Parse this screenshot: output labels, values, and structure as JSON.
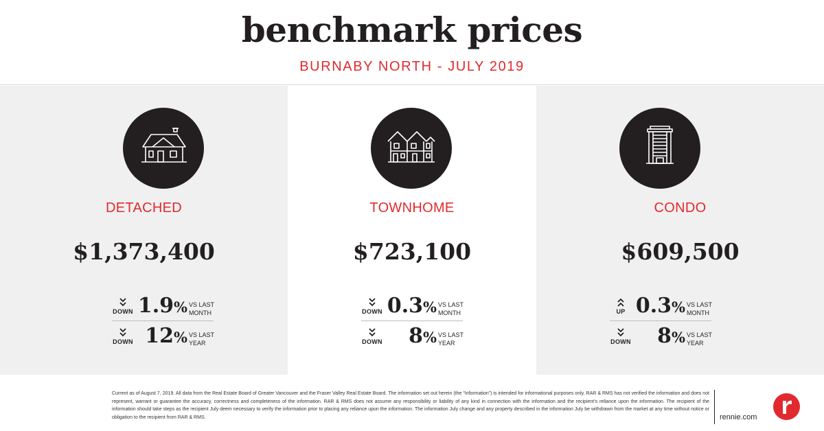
{
  "header": {
    "title": "benchmark prices",
    "subtitle": "BURNABY NORTH - JULY 2019"
  },
  "accent_color": "#e02a2e",
  "panels": [
    {
      "icon": "detached-house-icon",
      "type": "DETACHED",
      "price": "$1,373,400",
      "monthly": {
        "direction": "DOWN",
        "value": "1.9",
        "unit": "%",
        "vs_line1": "VS LAST",
        "vs_line2": "MONTH"
      },
      "yearly": {
        "direction": "DOWN",
        "value": "12",
        "unit": "%",
        "vs_line1": "VS LAST",
        "vs_line2": "YEAR"
      }
    },
    {
      "icon": "townhome-icon",
      "type": "TOWNHOME",
      "price": "$723,100",
      "monthly": {
        "direction": "DOWN",
        "value": "0.3",
        "unit": "%",
        "vs_line1": "VS LAST",
        "vs_line2": "MONTH"
      },
      "yearly": {
        "direction": "DOWN",
        "value": "8",
        "unit": "%",
        "vs_line1": "VS LAST",
        "vs_line2": "YEAR"
      }
    },
    {
      "icon": "condo-tower-icon",
      "type": "CONDO",
      "price": "$609,500",
      "monthly": {
        "direction": "UP",
        "value": "0.3",
        "unit": "%",
        "vs_line1": "VS LAST",
        "vs_line2": "MONTH"
      },
      "yearly": {
        "direction": "DOWN",
        "value": "8",
        "unit": "%",
        "vs_line1": "VS LAST",
        "vs_line2": "YEAR"
      }
    }
  ],
  "footer": {
    "disclaimer": "Current as of August 7, 2019. All data from the Real Estate Board of Greater Vancouver and the Fraser Valley Real Estate Board. The information set out herein (the “Information”) is intended for informational purposes only. RAR & RMS has not verified the information and does not represent, warrant or guarantee the accuracy, correctness and completeness of the information. RAR & RMS does not assume any responsibility or liability of any kind in connection with the information and the recipient’s reliance upon the information. The recipient of the information should take steps as the recipient July deem necessary to verify the information prior to placing any reliance upon the information. The information July change and any property described in the information July be withdrawn from the market at any time without notice or obligation to the recipient from RAR & RMS.",
    "site": "rennie.com",
    "logo": "rennie-logo"
  }
}
